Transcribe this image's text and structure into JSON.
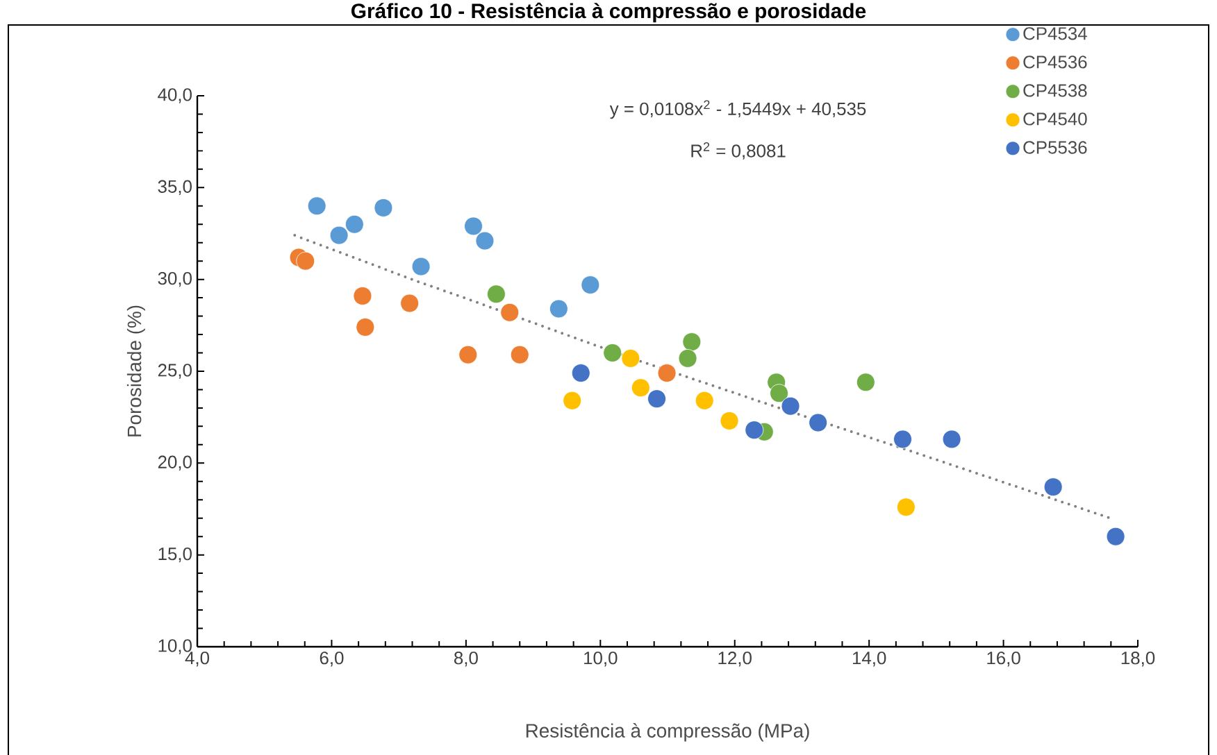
{
  "chart_data": {
    "type": "scatter",
    "title": "Gráfico 10 - Resistência à compressão e porosidade",
    "xlabel": "Resistência à compressão (MPa)",
    "ylabel": "Porosidade (%)",
    "annotations": [
      "y = 0,0108x$^{2}$ - 1,5449x + 40,535",
      "R$^{2}$ = 0,8081"
    ],
    "xlim": [
      4,
      18
    ],
    "ylim": [
      10,
      40
    ],
    "xticks": [
      {
        "value": 4,
        "label": "4,0"
      },
      {
        "value": 6,
        "label": "6,0"
      },
      {
        "value": 8,
        "label": "8,0"
      },
      {
        "value": 10,
        "label": "10,0"
      },
      {
        "value": 12,
        "label": "12,0"
      },
      {
        "value": 14,
        "label": "14,0"
      },
      {
        "value": 16,
        "label": "16,0"
      },
      {
        "value": 18,
        "label": "18,0"
      }
    ],
    "yticks": [
      {
        "value": 10,
        "label": "10,0"
      },
      {
        "value": 15,
        "label": "15,0"
      },
      {
        "value": 20,
        "label": "20,0"
      },
      {
        "value": 25,
        "label": "25,0"
      },
      {
        "value": 30,
        "label": "30,0"
      },
      {
        "value": 35,
        "label": "35,0"
      },
      {
        "value": 40,
        "label": "40,0"
      }
    ],
    "grid": false,
    "legend": "top right",
    "marker": "circle",
    "series": [
      {
        "name": "CP4534",
        "color": "#5b9bd5",
        "x": [
          5.78,
          6.11,
          6.34,
          6.77,
          7.33,
          8.11,
          8.28,
          9.38,
          9.85
        ],
        "values": [
          34.0,
          32.4,
          33.0,
          33.9,
          30.7,
          32.9,
          32.1,
          28.4,
          29.7
        ]
      },
      {
        "name": "CP4536",
        "color": "#ed7d31",
        "x": [
          5.51,
          5.61,
          6.46,
          6.5,
          7.16,
          8.03,
          8.8,
          8.65,
          10.99
        ],
        "values": [
          31.2,
          31.0,
          29.1,
          27.4,
          28.7,
          25.9,
          25.9,
          28.2,
          24.9
        ]
      },
      {
        "name": "CP4538",
        "color": "#70ad47",
        "x": [
          8.45,
          10.18,
          11.36,
          11.3,
          12.62,
          12.66,
          12.44,
          13.95
        ],
        "values": [
          29.2,
          26.0,
          26.6,
          25.7,
          24.4,
          23.8,
          21.7,
          24.4
        ]
      },
      {
        "name": "CP4540",
        "color": "#ffc000",
        "x": [
          9.58,
          10.45,
          10.6,
          11.55,
          11.92,
          14.55
        ],
        "values": [
          23.4,
          25.7,
          24.1,
          23.4,
          22.3,
          17.6
        ]
      },
      {
        "name": "CP5536",
        "color": "#4472c4",
        "x": [
          9.71,
          10.84,
          12.29,
          12.83,
          13.24,
          14.5,
          15.23,
          16.74,
          17.67
        ],
        "values": [
          24.9,
          23.5,
          21.8,
          23.1,
          22.2,
          21.3,
          21.3,
          18.7,
          16.0
        ]
      },
      {
        "type": "line",
        "color": "#808080",
        "line_style": "dotted",
        "marker": "none",
        "x": [
          5.45,
          7.27,
          8.05,
          9.33,
          10.47,
          12.58,
          14.5,
          17.59
        ],
        "values": [
          32.4,
          29.9,
          28.9,
          27.2,
          25.7,
          23.1,
          20.8,
          17.0
        ]
      }
    ]
  }
}
